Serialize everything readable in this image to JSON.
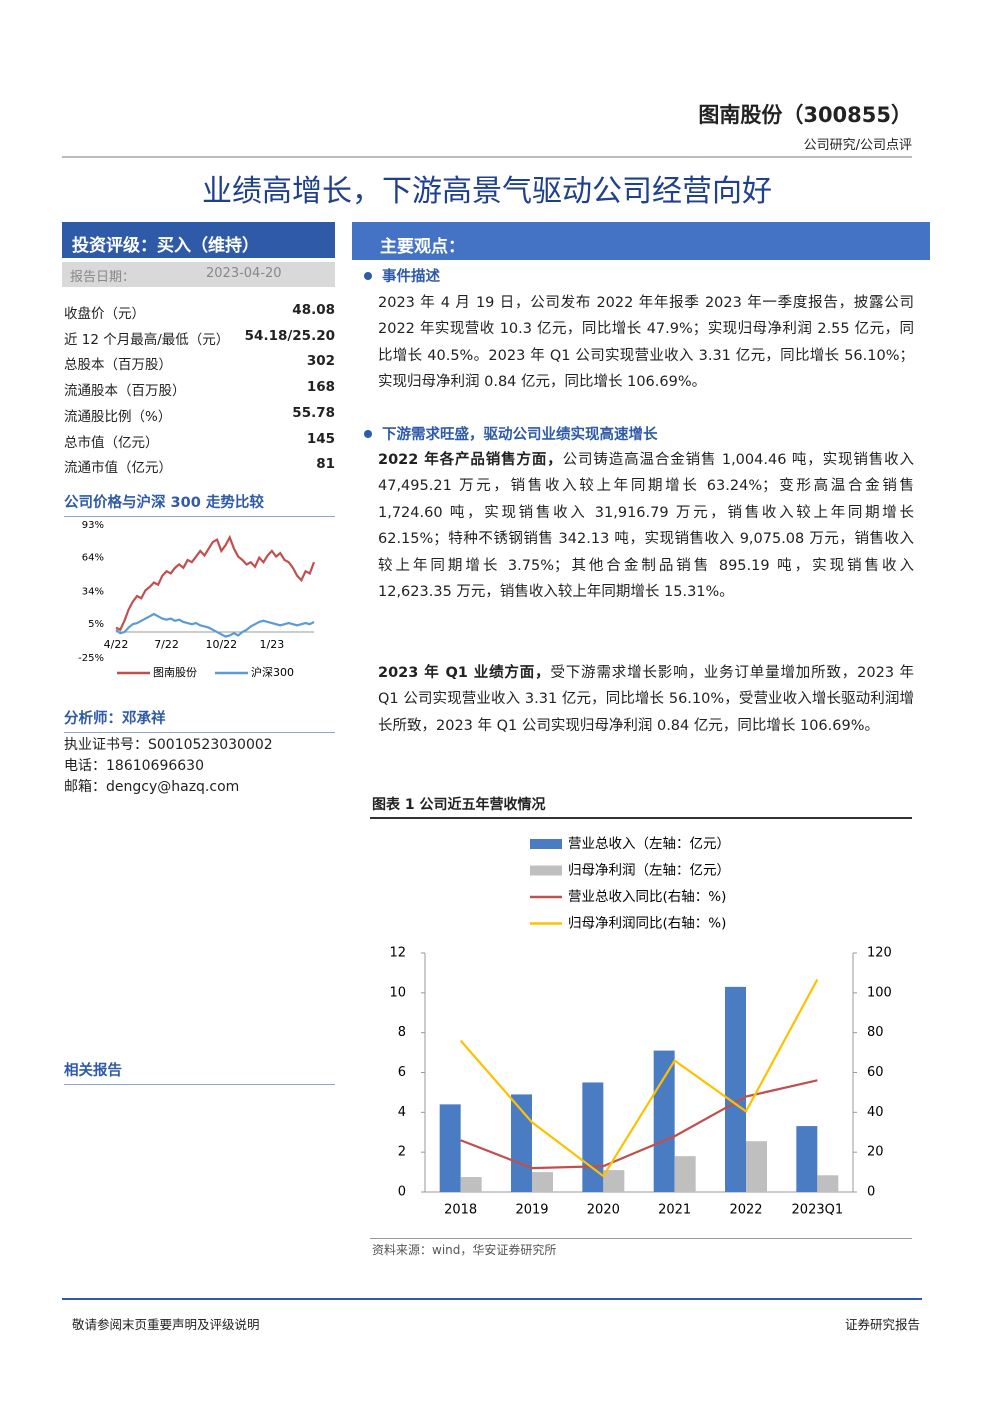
{
  "header": {
    "company": "图南股份（300855）",
    "category": "公司研究/公司点评"
  },
  "title": "业绩高增长，下游高景气驱动公司经营向好",
  "sidebar": {
    "rating": "投资评级：买入（维持）",
    "report_date_label": "报告日期：",
    "report_date": "2023-04-20",
    "stats": [
      [
        "收盘价（元）",
        48.08
      ],
      [
        "近 12 个月最高/最低（元）",
        "54.18/25.20"
      ],
      [
        "总股本（百万股）",
        302
      ],
      [
        "流通股本（百万股）",
        168
      ],
      [
        "流通股比例（%）",
        55.78
      ],
      [
        "总市值（亿元）",
        145
      ],
      [
        "流通市值（亿元）",
        81
      ]
    ],
    "price_chart_title": "公司价格与沪深 300 走势比较",
    "analyst": "分析师：邓承祥",
    "analyst_info": [
      "执业证书号：S0010523030002",
      "电话：18610696630",
      "邮箱：dengcy@hazq.com"
    ],
    "related": "相关报告"
  },
  "main": {
    "heading": "主要观点：",
    "sections": [
      {
        "title": "事件描述",
        "paragraphs": [
          {
            "text": "2023 年 4 月 19 日，公司发布 2022 年年报季 2023 年一季度报告，披露公司 2022 年实现营收 10.3 亿元，同比增长 47.9%；实现归母净利润 2.55 亿元，同比增长 40.5%。2023 年 Q1 公司实现营业收入 3.31 亿元，同比增长 56.10%；实现归母净利润 0.84 亿元，同比增长 106.69%。"
          }
        ]
      },
      {
        "title": "下游需求旺盛，驱动公司业绩实现高速增长",
        "paragraphs": [
          {
            "lead": "2022 年各产品销售方面，",
            "text": "公司铸造高温合金销售 1,004.46 吨，实现销售收入 47,495.21 万元，销售收入较上年同期增长 63.24%；变形高温合金销售 1,724.60 吨，实现销售收入 31,916.79 万元，销售收入较上年同期增长 62.15%；特种不锈钢销售 342.13 吨，实现销售收入 9,075.08 万元，销售收入较上年同期增长 3.75%；其他合金制品销售 895.19 吨，实现销售收入 12,623.35 万元，销售收入较上年同期增长 15.31%。"
          },
          {
            "lead": "2023 年 Q1 业绩方面，",
            "text": "受下游需求增长影响，业务订单量增加所致，2023 年 Q1 公司实现营业收入 3.31 亿元，同比增长 56.10%，受营业收入增长驱动利润增长所致，2023 年 Q1 公司实现归母净利润 0.84 亿元，同比增长 106.69%。"
          }
        ]
      }
    ],
    "figure_title": "图表 1 公司近五年营收情况",
    "figure_source": "资料来源：wind，华安证券研究所"
  },
  "footer": {
    "left": "敬请参阅末页重要声明及评级说明",
    "right": "证券研究报告"
  },
  "chart_data": [
    {
      "type": "line",
      "categories": [
        "4/22",
        null,
        null,
        null,
        null,
        null,
        null,
        null,
        null,
        null,
        null,
        null,
        "7/22",
        null,
        null,
        null,
        null,
        null,
        null,
        null,
        null,
        null,
        null,
        null,
        null,
        "10/22",
        null,
        null,
        null,
        null,
        null,
        null,
        null,
        null,
        null,
        null,
        null,
        "1/23",
        null,
        null,
        null,
        null,
        null,
        null,
        null,
        null,
        null,
        null
      ],
      "series": [
        {
          "name": "图南股份",
          "color": "#c0504d",
          "values": [
            2,
            0,
            8,
            18,
            25,
            30,
            28,
            35,
            38,
            42,
            40,
            48,
            52,
            50,
            55,
            58,
            55,
            62,
            60,
            65,
            70,
            66,
            72,
            78,
            80,
            70,
            75,
            82,
            72,
            65,
            62,
            58,
            60,
            56,
            64,
            60,
            66,
            70,
            65,
            68,
            62,
            60,
            55,
            48,
            44,
            52,
            50,
            60
          ]
        },
        {
          "name": "沪深300",
          "color": "#5b9bd5",
          "values": [
            0,
            -3,
            -2,
            2,
            5,
            6,
            8,
            10,
            12,
            14,
            12,
            10,
            9,
            10,
            8,
            9,
            7,
            6,
            5,
            6,
            4,
            3,
            2,
            0,
            -2,
            -4,
            -6,
            -5,
            -3,
            -5,
            -2,
            0,
            3,
            5,
            7,
            8,
            7,
            6,
            5,
            4,
            5,
            6,
            5,
            4,
            5,
            6,
            5,
            7
          ]
        }
      ],
      "ylim": [
        -25,
        93
      ],
      "yticks": [
        {
          "value": -25,
          "label": "-25%"
        },
        {
          "value": 5,
          "label": "5%"
        },
        {
          "value": 34,
          "label": "34%"
        },
        {
          "value": 64,
          "label": "64%"
        },
        {
          "value": 93,
          "label": "93%"
        }
      ]
    },
    {
      "type": "bar",
      "categories": [
        "2018",
        "2019",
        "2020",
        "2021",
        "2022",
        "2023Q1"
      ],
      "series": [
        {
          "name": "营业总收入（左轴：亿元）",
          "type": "bar",
          "color": "#4a7cc4",
          "values": [
            4.4,
            4.9,
            5.5,
            7.1,
            10.3,
            3.31
          ]
        },
        {
          "name": "归母净利润（左轴：亿元）",
          "type": "bar",
          "color": "#bfbfbf",
          "values": [
            0.75,
            1.0,
            1.1,
            1.8,
            2.55,
            0.84
          ]
        },
        {
          "name": "营业总收入同比(右轴：%)",
          "type": "line",
          "axis": "y2",
          "color": "#c0504d",
          "values": [
            26,
            12,
            13,
            28,
            47.9,
            56.1
          ]
        },
        {
          "name": "归母净利润同比(右轴：%)",
          "type": "line",
          "axis": "y2",
          "color": "#ffc000",
          "values": [
            76,
            35,
            8,
            66,
            40.5,
            106.69
          ]
        }
      ],
      "ylim": [
        0,
        12
      ],
      "yticks": [
        0,
        2,
        4,
        6,
        8,
        10,
        12
      ],
      "y2lim": [
        0,
        120
      ],
      "y2ticks": [
        0,
        20,
        40,
        60,
        80,
        100,
        120
      ]
    }
  ]
}
